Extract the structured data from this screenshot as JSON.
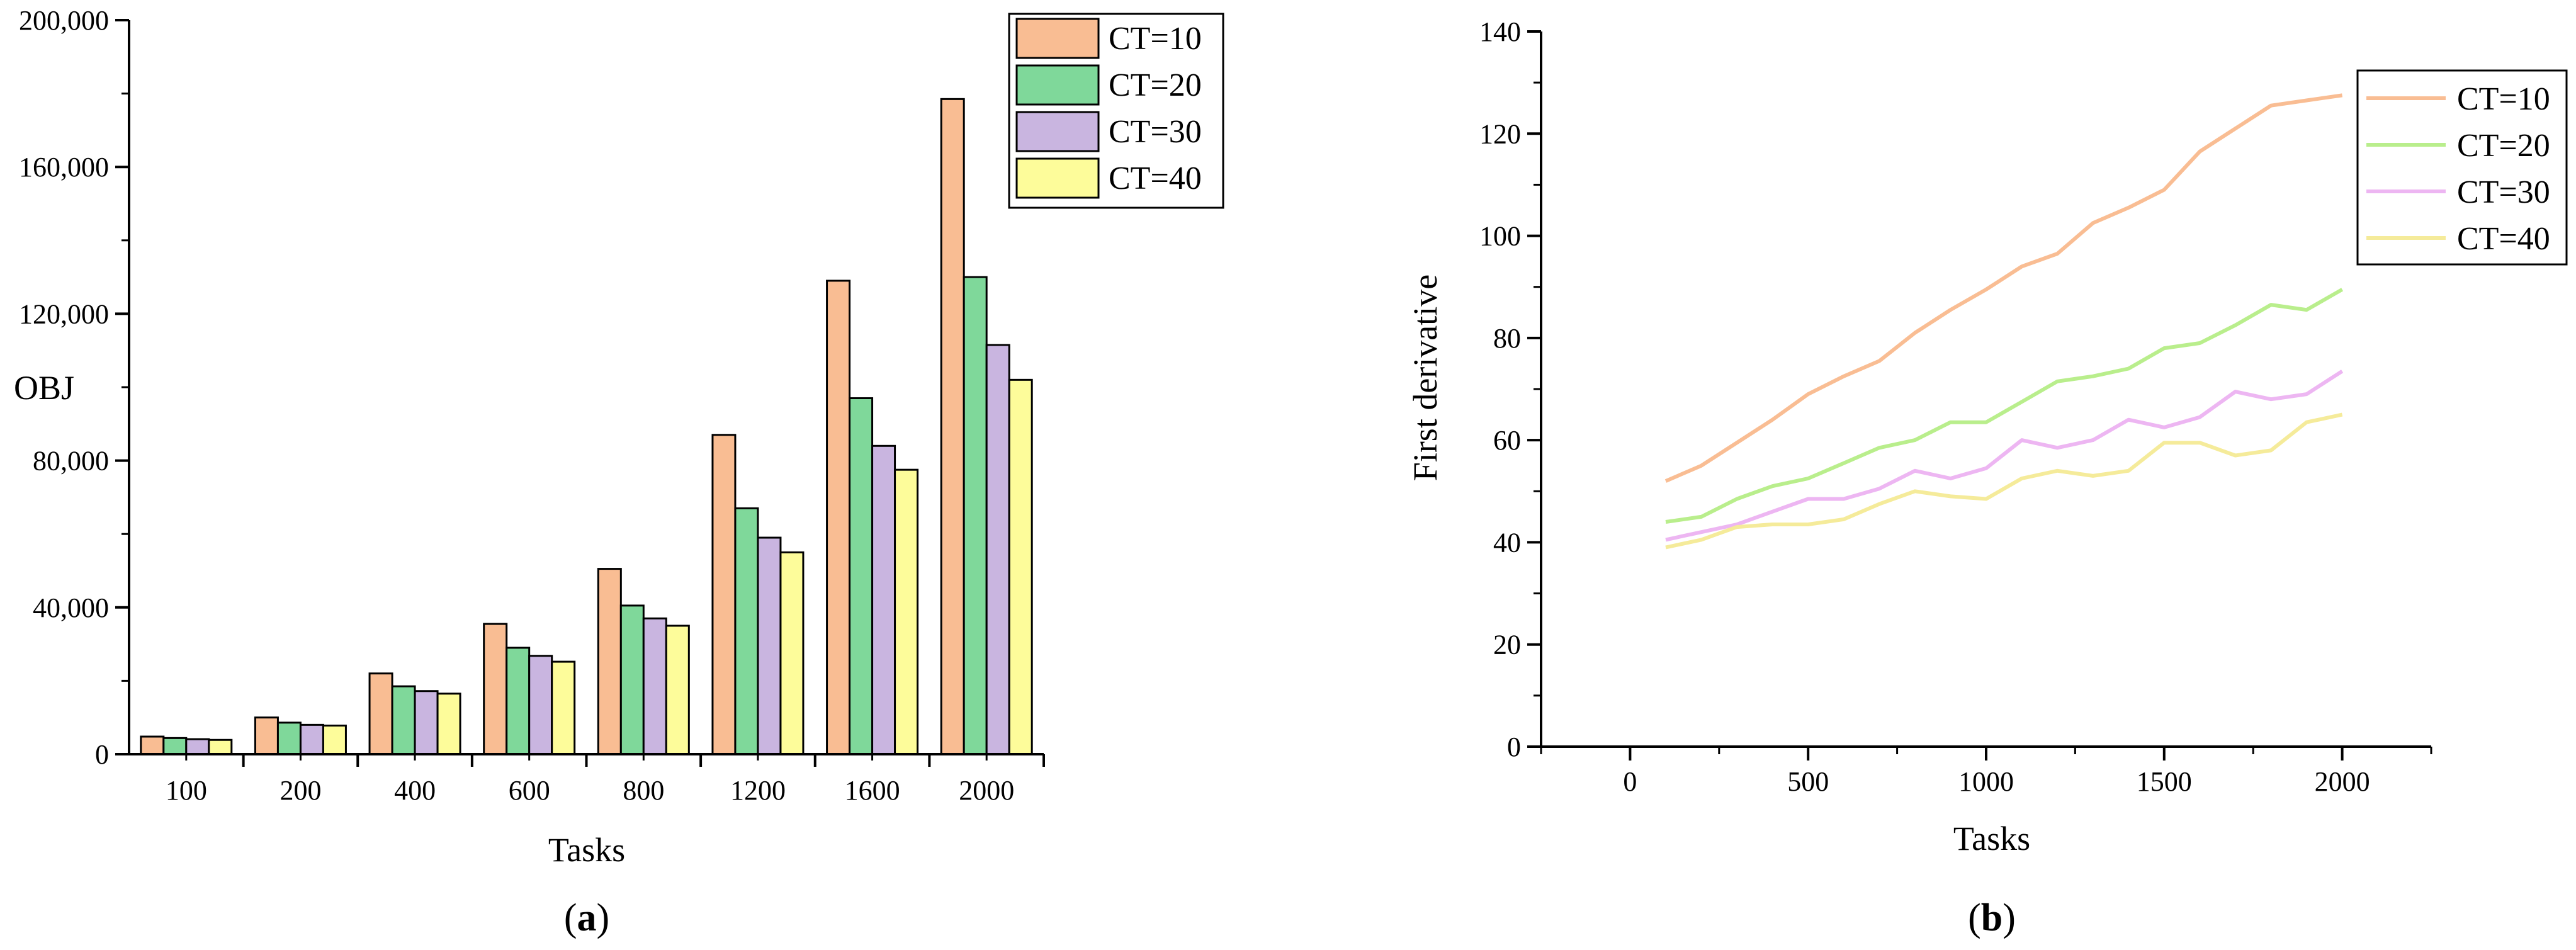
{
  "chart_data": [
    {
      "type": "bar",
      "panel_label": "a",
      "xlabel": "Tasks",
      "ylabel": "OBJ",
      "ylim": [
        0,
        200000
      ],
      "yticks": [
        0,
        40000,
        80000,
        120000,
        160000,
        200000
      ],
      "ytick_labels": [
        "0",
        "40,000",
        "80,000",
        "120,000",
        "160,000",
        "200,000"
      ],
      "categories": [
        "100",
        "200",
        "400",
        "600",
        "800",
        "1200",
        "1600",
        "2000"
      ],
      "legend_position": "top-right",
      "series": [
        {
          "name": "CT=10",
          "color": "#F9BD93",
          "values": [
            4800,
            10000,
            22000,
            35500,
            50500,
            87000,
            129000,
            178500
          ]
        },
        {
          "name": "CT=20",
          "color": "#7FD89A",
          "values": [
            4400,
            8600,
            18500,
            29000,
            40500,
            67000,
            97000,
            130000
          ]
        },
        {
          "name": "CT=30",
          "color": "#C9B5E0",
          "values": [
            4100,
            8000,
            17200,
            26800,
            37000,
            59000,
            84000,
            111500
          ]
        },
        {
          "name": "CT=40",
          "color": "#FDFC9A",
          "values": [
            3900,
            7800,
            16500,
            25200,
            35000,
            55000,
            77500,
            102000
          ]
        }
      ]
    },
    {
      "type": "line",
      "panel_label": "b",
      "xlabel": "Tasks",
      "ylabel": "First derivative",
      "xlim": [
        -250,
        2250
      ],
      "ylim": [
        0,
        140
      ],
      "xticks": [
        0,
        500,
        1000,
        1500,
        2000
      ],
      "xtick_labels": [
        "0",
        "500",
        "1000",
        "1500",
        "2000"
      ],
      "yticks": [
        0,
        20,
        40,
        60,
        80,
        100,
        120,
        140
      ],
      "ytick_labels": [
        "0",
        "20",
        "40",
        "60",
        "80",
        "100",
        "120",
        "140"
      ],
      "legend_position": "top-right",
      "x": [
        100,
        200,
        300,
        400,
        500,
        600,
        700,
        800,
        900,
        1000,
        1100,
        1200,
        1300,
        1400,
        1500,
        1600,
        1700,
        1800,
        1900,
        2000
      ],
      "series": [
        {
          "name": "CT=10",
          "color": "#F9BD93",
          "values": [
            52,
            55,
            59.5,
            64,
            69,
            72.5,
            75.5,
            81,
            85.5,
            89.5,
            94,
            96.5,
            102.5,
            105.5,
            109,
            116.5,
            121,
            125.5,
            126.5,
            127.5
          ]
        },
        {
          "name": "CT=20",
          "color": "#B9EE8C",
          "values": [
            44,
            45,
            48.5,
            51,
            52.5,
            55.5,
            58.5,
            60,
            63.5,
            63.5,
            67.5,
            71.5,
            72.5,
            74,
            78,
            79,
            82.5,
            86.5,
            85.5,
            89.5
          ]
        },
        {
          "name": "CT=30",
          "color": "#EDB6F2",
          "values": [
            40.5,
            42,
            43.5,
            46,
            48.5,
            48.5,
            50.5,
            54,
            52.5,
            54.5,
            60,
            58.5,
            60,
            64,
            62.5,
            64.5,
            69.5,
            68,
            69,
            73.5
          ]
        },
        {
          "name": "CT=40",
          "color": "#F5EB9A",
          "values": [
            39,
            40.5,
            43,
            43.5,
            43.5,
            44.5,
            47.5,
            50,
            49,
            48.5,
            52.5,
            54,
            53,
            54,
            59.5,
            59.5,
            57,
            58,
            63.5,
            65
          ]
        }
      ]
    }
  ]
}
